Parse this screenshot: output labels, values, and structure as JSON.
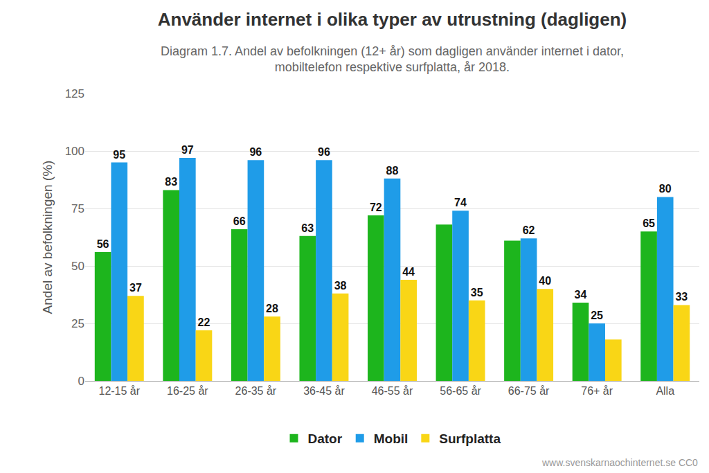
{
  "chart_data": {
    "type": "bar",
    "title": "Använder internet i olika typer av utrustning (dagligen)",
    "subtitle": [
      "Diagram 1.7. Andel av befolkningen (12+ år) som dagligen använder internet i dator,",
      "mobiltelefon respektive surfplatta, år 2018."
    ],
    "y_label": "Andel av befolkningen (%)",
    "annotation": "www.svenskarnaochinternet.se CC0",
    "categories": [
      "12-15 år",
      "16-25 år",
      "26-35 år",
      "36-45 år",
      "46-55 år",
      "56-65 år",
      "66-75 år",
      "76+ år",
      "Alla"
    ],
    "series": [
      {
        "name": "Dator",
        "color": "#1db51d",
        "values": [
          56,
          83,
          66,
          63,
          72,
          68,
          61,
          34,
          65
        ],
        "value_labels": [
          "56",
          "83",
          "66",
          "63",
          "72",
          null,
          null,
          "34",
          "65"
        ]
      },
      {
        "name": "Mobil",
        "color": "#1f9ce8",
        "values": [
          95,
          97,
          96,
          96,
          88,
          74,
          62,
          25,
          80
        ],
        "value_labels": [
          "95",
          "97",
          "96",
          "96",
          "88",
          "74",
          "62",
          "25",
          "80"
        ]
      },
      {
        "name": "Surfplatta",
        "color": "#f9d616",
        "values": [
          37,
          22,
          28,
          38,
          44,
          35,
          40,
          18,
          33
        ],
        "value_labels": [
          "37",
          "22",
          "28",
          "38",
          "44",
          "35",
          "40",
          null,
          "33"
        ]
      }
    ],
    "ylim": [
      0,
      125
    ],
    "yticks": [
      0,
      25,
      50,
      75,
      100,
      125
    ],
    "grid": true,
    "legend": "bottom",
    "data_labels": true
  }
}
